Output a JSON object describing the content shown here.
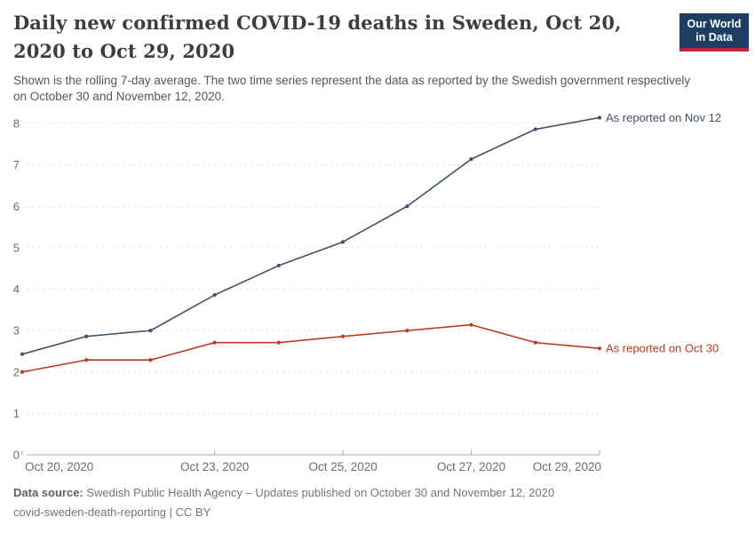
{
  "header": {
    "title": "Daily new confirmed COVID-19 deaths in Sweden, Oct 20, 2020 to Oct 29, 2020",
    "subtitle": "Shown is the rolling 7-day average. The two time series represent the data as reported by the Swedish government respectively on October 30 and November 12, 2020.",
    "logo": {
      "line1": "Our World",
      "line2": "in Data",
      "bg_color": "#1d3d63",
      "accent_color": "#c7252f"
    }
  },
  "chart_data": {
    "type": "line",
    "title": "Daily new confirmed COVID-19 deaths in Sweden, Oct 20, 2020 to Oct 29, 2020",
    "xlabel": "",
    "ylabel": "",
    "x": [
      "Oct 20, 2020",
      "Oct 21, 2020",
      "Oct 22, 2020",
      "Oct 23, 2020",
      "Oct 24, 2020",
      "Oct 25, 2020",
      "Oct 26, 2020",
      "Oct 27, 2020",
      "Oct 28, 2020",
      "Oct 29, 2020"
    ],
    "series": [
      {
        "name": "As reported on Nov 12",
        "color": "#3d536b",
        "values": [
          2.43,
          2.86,
          3.0,
          3.86,
          4.57,
          5.14,
          6.0,
          7.14,
          7.86,
          8.14
        ]
      },
      {
        "name": "As reported on Oct 30",
        "color": "#bb3a1e",
        "values": [
          2.0,
          2.29,
          2.29,
          2.71,
          2.71,
          2.86,
          3.0,
          3.14,
          2.71,
          2.57
        ]
      }
    ],
    "ylim": [
      0,
      8
    ],
    "yticks": [
      0,
      1,
      2,
      3,
      4,
      5,
      6,
      7,
      8
    ],
    "xticks": [
      {
        "index": 0,
        "label": "Oct 20, 2020",
        "align": "start"
      },
      {
        "index": 3,
        "label": "Oct 23, 2020",
        "align": "middle"
      },
      {
        "index": 5,
        "label": "Oct 25, 2020",
        "align": "middle"
      },
      {
        "index": 7,
        "label": "Oct 27, 2020",
        "align": "middle"
      },
      {
        "index": 9,
        "label": "Oct 29, 2020",
        "align": "end"
      }
    ],
    "grid": true,
    "legend_position": "end-of-line-labels",
    "style": {
      "grid_color": "#dcdcdc",
      "axis_color": "#a5a5a5",
      "tick_label_color": "#6b6b6b"
    }
  },
  "footer": {
    "source_label": "Data source:",
    "source_text": " Swedish Public Health Agency – Updates published on October 30 and November 12, 2020",
    "attribution": "covid-sweden-death-reporting | CC BY"
  }
}
